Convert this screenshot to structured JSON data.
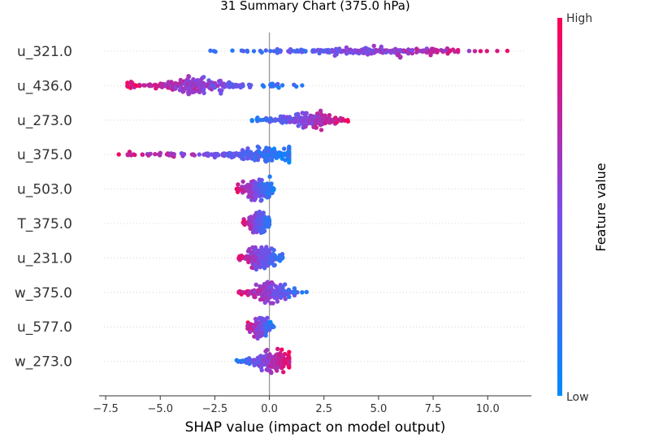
{
  "chart_data": {
    "type": "scatter",
    "subtype": "shap-beeswarm",
    "title": "31 Summary Chart (375.0 hPa)",
    "xlabel": "SHAP value (impact on model output)",
    "xlim": [
      -7.8,
      12.0
    ],
    "xticks": [
      -7.5,
      -5.0,
      -2.5,
      0.0,
      2.5,
      5.0,
      7.5,
      10.0
    ],
    "xtick_labels": [
      "−7.5",
      "−5.0",
      "−2.5",
      "0.0",
      "2.5",
      "5.0",
      "7.5",
      "10.0"
    ],
    "grid": "horizontal dotted row lines",
    "colorbar": {
      "label": "Feature value",
      "high_label": "High",
      "low_label": "Low",
      "low_color": "#008bfb",
      "mid_color": "#7f4ae6",
      "high_color": "#ff0052"
    },
    "features": [
      {
        "name": "u_321.0",
        "min": -2.7,
        "max": 10.9,
        "center": 5.0,
        "trend": 1,
        "density": 1.0
      },
      {
        "name": "u_436.0",
        "min": -6.5,
        "max": 1.5,
        "center": -3.5,
        "trend": -1,
        "density": 1.0
      },
      {
        "name": "u_273.0",
        "min": -0.8,
        "max": 3.6,
        "center": 1.8,
        "trend": 1,
        "density": 0.8
      },
      {
        "name": "u_375.0",
        "min": -6.9,
        "max": 0.9,
        "center": -0.5,
        "trend": -1,
        "density": 1.0
      },
      {
        "name": "u_503.0",
        "min": -1.5,
        "max": 0.2,
        "center": -0.5,
        "trend": -1,
        "density": 0.9
      },
      {
        "name": "T_375.0",
        "min": -1.2,
        "max": 0.0,
        "center": -0.5,
        "trend": -1,
        "density": 0.8
      },
      {
        "name": "u_231.0",
        "min": -1.4,
        "max": 0.6,
        "center": -0.4,
        "trend": -1,
        "density": 0.9
      },
      {
        "name": "w_375.0",
        "min": -1.4,
        "max": 1.7,
        "center": 0.0,
        "trend": -1,
        "density": 0.9
      },
      {
        "name": "u_577.0",
        "min": -1.0,
        "max": 0.2,
        "center": -0.4,
        "trend": -1,
        "density": 0.7
      },
      {
        "name": "w_273.0",
        "min": -1.5,
        "max": 0.9,
        "center": 0.2,
        "trend": 1,
        "density": 0.9
      }
    ]
  }
}
